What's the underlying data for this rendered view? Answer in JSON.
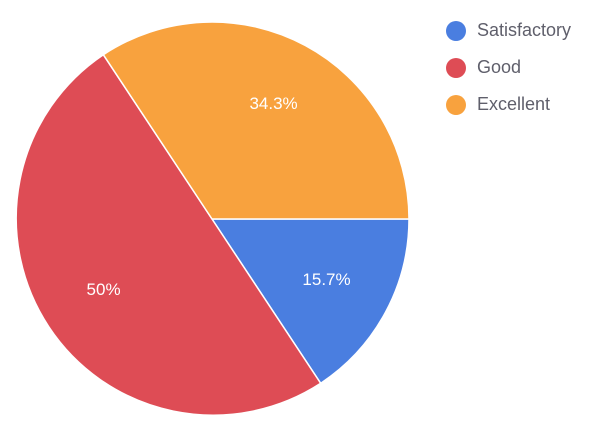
{
  "chart_data": {
    "type": "pie",
    "title": "",
    "categories": [
      "Satisfactory",
      "Good",
      "Excellent"
    ],
    "values": [
      15.7,
      50,
      34.3
    ],
    "labels": [
      "15.7%",
      "50%",
      "34.3%"
    ],
    "colors": [
      "#4a7ee0",
      "#de4c55",
      "#f8a23e"
    ],
    "legend_position": "right"
  },
  "legend": {
    "items": [
      {
        "label": "Satisfactory",
        "color": "#4a7ee0"
      },
      {
        "label": "Good",
        "color": "#de4c55"
      },
      {
        "label": "Excellent",
        "color": "#f8a23e"
      }
    ]
  }
}
